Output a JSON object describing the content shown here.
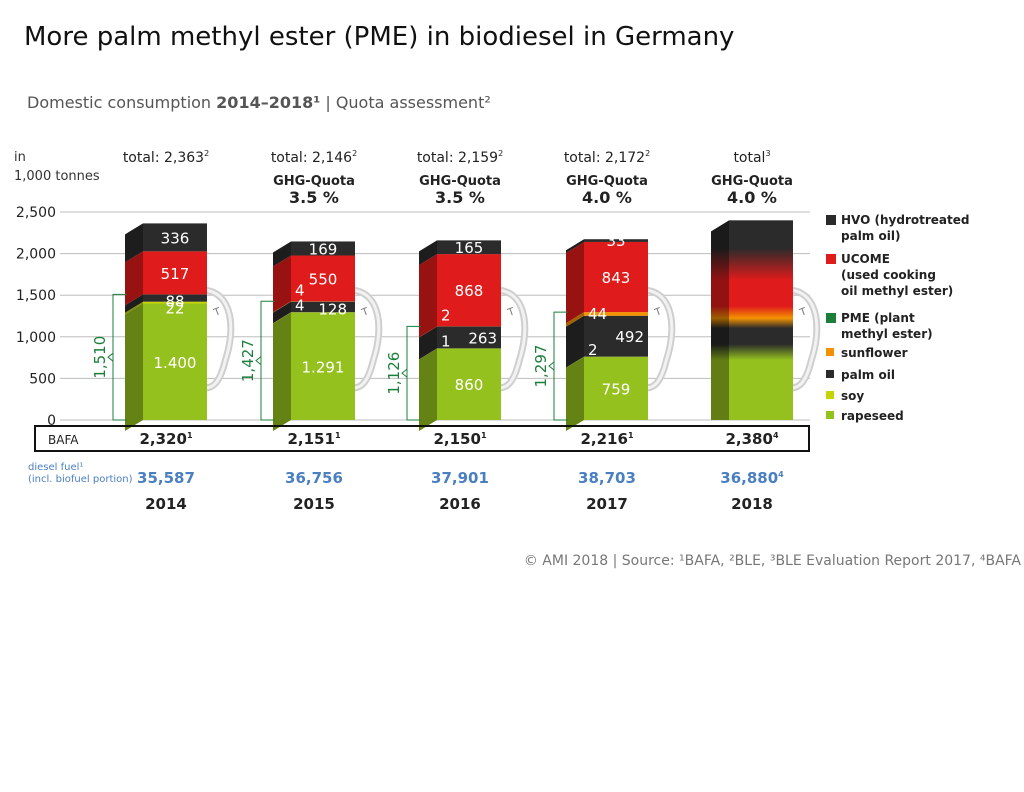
{
  "title": "More palm methyl ester (PME) in biodiesel in Germany",
  "subtitle": {
    "prefix": "Domestic consumption",
    "years": "2014–2018¹",
    "suffix": "| Quota assessment²"
  },
  "source": "© AMI 2018 | Source: ¹BAFA, ²BLE, ³BLE Evaluation Report 2017, ⁴BAFA",
  "colors": {
    "hvo": "#2b2b2b",
    "ucome": "#e01b1b",
    "sunflower": "#f39200",
    "palm_oil": "#2b2b2b",
    "soy": "#c7d300",
    "rapeseed": "#95c11f",
    "pme_bracket": "#1b7f3a",
    "diesel_text": "#4a7fc1"
  },
  "chart_data": {
    "type": "bar",
    "stacked": true,
    "y_unit_label": [
      "in",
      "1,000 tonnes"
    ],
    "ylim": [
      0,
      2500
    ],
    "yticks": [
      "0",
      "500",
      "1,000",
      "1,500",
      "2,000",
      "2,500"
    ],
    "grid": true,
    "categories": [
      "2014",
      "2015",
      "2016",
      "2017",
      "2018"
    ],
    "series": [
      {
        "name": "rapeseed",
        "values": [
          1400,
          1291,
          860,
          759,
          750
        ]
      },
      {
        "name": "soy",
        "values": [
          22,
          4,
          1,
          2,
          0
        ]
      },
      {
        "name": "palm oil",
        "values": [
          88,
          128,
          263,
          492,
          500
        ]
      },
      {
        "name": "sunflower",
        "values": [
          0,
          4,
          2,
          44,
          50
        ]
      },
      {
        "name": "UCOME (used cooking oil methyl ester)",
        "values": [
          517,
          550,
          868,
          843,
          700
        ]
      },
      {
        "name": "HVO (hydrotreated palm oil)",
        "values": [
          336,
          169,
          165,
          33,
          400
        ]
      }
    ],
    "segment_labels": [
      [
        {
          "seg": 0,
          "text": "1.400"
        },
        {
          "seg": 1,
          "text": "22"
        },
        {
          "seg": 2,
          "text": "88"
        },
        {
          "seg": 4,
          "text": "517"
        },
        {
          "seg": 5,
          "text": "336"
        }
      ],
      [
        {
          "seg": 0,
          "text": "1.291"
        },
        {
          "seg": 1,
          "text": "4"
        },
        {
          "seg": 2,
          "text": "128"
        },
        {
          "seg": 3,
          "text": "4"
        },
        {
          "seg": 4,
          "text": "550"
        },
        {
          "seg": 5,
          "text": "169"
        }
      ],
      [
        {
          "seg": 0,
          "text": "860"
        },
        {
          "seg": 1,
          "text": "1"
        },
        {
          "seg": 2,
          "text": "263"
        },
        {
          "seg": 3,
          "text": "2"
        },
        {
          "seg": 4,
          "text": "868"
        },
        {
          "seg": 5,
          "text": "165"
        }
      ],
      [
        {
          "seg": 0,
          "text": "759"
        },
        {
          "seg": 1,
          "text": "2"
        },
        {
          "seg": 2,
          "text": "492"
        },
        {
          "seg": 3,
          "text": "44"
        },
        {
          "seg": 4,
          "text": "843"
        },
        {
          "seg": 5,
          "text": "33"
        }
      ],
      []
    ],
    "totals": [
      {
        "label": "total: 2,363",
        "sup": "2"
      },
      {
        "label": "total: 2,146",
        "sup": "2"
      },
      {
        "label": "total: 2,159",
        "sup": "2"
      },
      {
        "label": "total: 2,172",
        "sup": "2"
      },
      {
        "label": "total",
        "sup": "3"
      }
    ],
    "ghg_label": "GHG-Quota",
    "ghg_quota": [
      null,
      "3.5 %",
      "3.5 %",
      "4.0 %",
      "4.0 %"
    ],
    "pme_totals": [
      "1,510",
      "1,427",
      "1,126",
      "1,297",
      null
    ],
    "bafa_label": "BAFA",
    "bafa": [
      {
        "value": "2,320",
        "sup": "1"
      },
      {
        "value": "2,151",
        "sup": "1"
      },
      {
        "value": "2,150",
        "sup": "1"
      },
      {
        "value": "2,216",
        "sup": "1"
      },
      {
        "value": "2,380",
        "sup": "4"
      }
    ],
    "diesel_label": [
      "diesel fuel¹",
      "(incl. biofuel portion)"
    ],
    "diesel": [
      {
        "value": "35,587",
        "sup": ""
      },
      {
        "value": "36,756",
        "sup": ""
      },
      {
        "value": "37,901",
        "sup": ""
      },
      {
        "value": "38,703",
        "sup": ""
      },
      {
        "value": "36,880",
        "sup": "4"
      }
    ],
    "legend": [
      {
        "key": "hvo",
        "lines": [
          "HVO (hydrotreated",
          "palm oil)"
        ],
        "bold": true
      },
      {
        "key": "ucome",
        "lines": [
          "UCOME",
          "(used cooking",
          "oil methyl ester)"
        ],
        "bold": true
      },
      {
        "key": "pme_bracket",
        "lines": [
          "PME (plant",
          "methyl ester)"
        ],
        "bold": true
      },
      {
        "key": "sunflower",
        "lines": [
          "sunflower"
        ],
        "bold": true
      },
      {
        "key": "palm_oil",
        "lines": [
          "palm oil"
        ],
        "bold": true
      },
      {
        "key": "soy",
        "lines": [
          "soy"
        ],
        "bold": true
      },
      {
        "key": "rapeseed",
        "lines": [
          "rapeseed"
        ],
        "bold": true
      }
    ]
  }
}
